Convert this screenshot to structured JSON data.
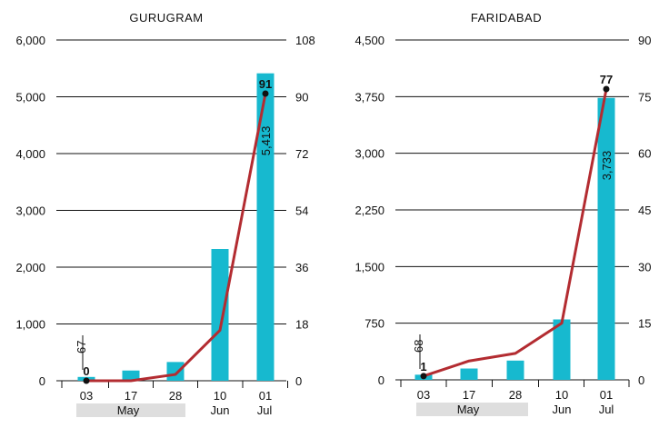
{
  "chart_data": [
    {
      "type": "bar",
      "title": "GURUGRAM",
      "categories": [
        "03",
        "17",
        "28",
        "10",
        "01"
      ],
      "month_labels": [
        "May",
        "Jun",
        "Jul"
      ],
      "left_axis": {
        "ticks": [
          "0",
          "1,000",
          "2,000",
          "3,000",
          "4,000",
          "5,000",
          "6,000"
        ],
        "ylim": [
          0,
          6000
        ]
      },
      "right_axis": {
        "ticks": [
          "0",
          "18",
          "36",
          "54",
          "72",
          "90",
          "108"
        ],
        "ylim": [
          0,
          108
        ]
      },
      "bars": [
        67,
        180,
        330,
        2320,
        5413
      ],
      "line": [
        0,
        0,
        2,
        16,
        91
      ],
      "bar_labels": [
        {
          "index": 0,
          "text": "67"
        },
        {
          "index": 4,
          "text": "5,413"
        }
      ],
      "line_labels": [
        {
          "index": 0,
          "text": "0"
        },
        {
          "index": 4,
          "text": "91"
        }
      ],
      "colors": {
        "bars": "#17b9cf",
        "line": "#b32c31"
      },
      "grid": true
    },
    {
      "type": "bar",
      "title": "FARIDABAD",
      "categories": [
        "03",
        "17",
        "28",
        "10",
        "01"
      ],
      "month_labels": [
        "May",
        "Jun",
        "Jul"
      ],
      "left_axis": {
        "ticks": [
          "0",
          "750",
          "1,500",
          "2,250",
          "3,000",
          "3,750",
          "4,500"
        ],
        "ylim": [
          0,
          4500
        ]
      },
      "right_axis": {
        "ticks": [
          "0",
          "15",
          "30",
          "45",
          "60",
          "75",
          "90"
        ],
        "ylim": [
          0,
          90
        ]
      },
      "bars": [
        68,
        150,
        255,
        800,
        3733
      ],
      "line": [
        1,
        5,
        7,
        15,
        77
      ],
      "bar_labels": [
        {
          "index": 0,
          "text": "68"
        },
        {
          "index": 4,
          "text": "3,733"
        }
      ],
      "line_labels": [
        {
          "index": 0,
          "text": "1"
        },
        {
          "index": 4,
          "text": "77"
        }
      ],
      "colors": {
        "bars": "#17b9cf",
        "line": "#b32c31"
      },
      "grid": true
    }
  ]
}
